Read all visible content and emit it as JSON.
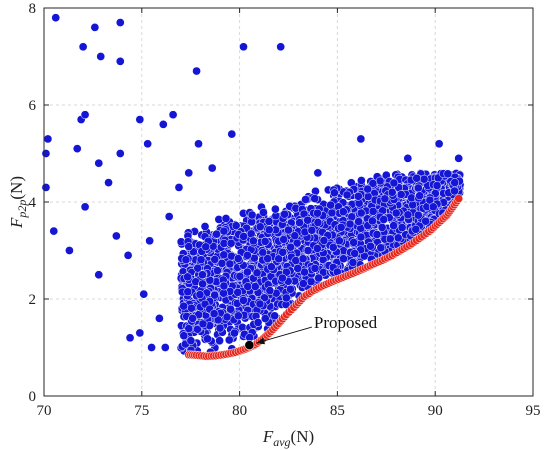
{
  "chart_data": {
    "type": "scatter",
    "xlim": [
      70,
      95
    ],
    "ylim": [
      0,
      8
    ],
    "x_ticks": [
      70,
      75,
      80,
      85,
      90,
      95
    ],
    "y_ticks": [
      0,
      2,
      4,
      6,
      8
    ],
    "x_ticklabels": [
      "70",
      "75",
      "80",
      "85",
      "90",
      "95"
    ],
    "y_ticklabels": [
      "0",
      "2",
      "4",
      "6",
      "8"
    ],
    "xlabel": {
      "main": "F",
      "sub": "avg",
      "unit": "(N)"
    },
    "ylabel": {
      "main": "F",
      "sub": "p2p",
      "unit": "(N)"
    },
    "grid": true,
    "colors": {
      "cloud": "#1515d6",
      "pareto": "#e8261b",
      "proposed": "#000000",
      "grid": "#d9d9d9"
    },
    "series": [
      {
        "marker": "circle",
        "color": "#1515d6",
        "points": [
          [
            70.6,
            7.8
          ],
          [
            72.6,
            7.6
          ],
          [
            73.9,
            7.7
          ],
          [
            72.0,
            7.2
          ],
          [
            72.9,
            7.0
          ],
          [
            73.9,
            6.9
          ],
          [
            80.2,
            7.2
          ],
          [
            82.1,
            7.2
          ],
          [
            77.8,
            6.7
          ],
          [
            70.2,
            5.3
          ],
          [
            71.7,
            5.1
          ],
          [
            71.9,
            5.7
          ],
          [
            72.1,
            5.8
          ],
          [
            70.1,
            5.0
          ],
          [
            73.9,
            5.0
          ],
          [
            72.8,
            4.8
          ],
          [
            73.3,
            4.4
          ],
          [
            74.9,
            5.7
          ],
          [
            75.3,
            5.2
          ],
          [
            76.1,
            5.6
          ],
          [
            76.6,
            5.8
          ],
          [
            77.9,
            5.2
          ],
          [
            79.6,
            5.4
          ],
          [
            78.6,
            4.7
          ],
          [
            77.4,
            4.6
          ],
          [
            70.1,
            4.3
          ],
          [
            70.5,
            3.4
          ],
          [
            71.3,
            3.0
          ],
          [
            72.1,
            3.9
          ],
          [
            72.8,
            2.5
          ],
          [
            74.3,
            2.9
          ],
          [
            73.7,
            3.3
          ],
          [
            75.1,
            2.1
          ],
          [
            74.4,
            1.2
          ],
          [
            75.5,
            1.0
          ],
          [
            74.9,
            1.3
          ],
          [
            76.2,
            1.0
          ],
          [
            75.9,
            1.6
          ],
          [
            75.4,
            3.2
          ],
          [
            76.4,
            3.7
          ],
          [
            76.9,
            4.3
          ],
          [
            81.5,
            3.6
          ],
          [
            83.5,
            3.0
          ],
          [
            85.3,
            3.8
          ],
          [
            87.8,
            4.2
          ],
          [
            89.9,
            3.9
          ],
          [
            91.0,
            4.4
          ],
          [
            86.2,
            5.3
          ],
          [
            88.6,
            4.9
          ],
          [
            90.2,
            5.2
          ],
          [
            91.2,
            4.9
          ],
          [
            84.0,
            4.6
          ],
          [
            85.1,
            3.2
          ],
          [
            82.6,
            2.2
          ],
          [
            80.4,
            2.9
          ],
          [
            79.2,
            3.4
          ],
          [
            78.1,
            2.5
          ],
          [
            77.6,
            1.6
          ],
          [
            79.0,
            1.4
          ]
        ]
      },
      {
        "marker": "circle",
        "color": "#e8261b",
        "points": [
          [
            77.4,
            0.85
          ],
          [
            77.8,
            0.84
          ],
          [
            78.3,
            0.82
          ],
          [
            78.8,
            0.83
          ],
          [
            79.3,
            0.86
          ],
          [
            79.8,
            0.9
          ],
          [
            80.3,
            0.97
          ],
          [
            80.8,
            1.06
          ],
          [
            81.2,
            1.18
          ],
          [
            81.6,
            1.33
          ],
          [
            82.0,
            1.5
          ],
          [
            82.4,
            1.68
          ],
          [
            82.9,
            1.88
          ],
          [
            83.3,
            2.05
          ],
          [
            83.8,
            2.18
          ],
          [
            84.3,
            2.28
          ],
          [
            84.8,
            2.37
          ],
          [
            85.3,
            2.45
          ],
          [
            85.8,
            2.53
          ],
          [
            86.3,
            2.62
          ],
          [
            86.8,
            2.71
          ],
          [
            87.3,
            2.8
          ],
          [
            87.8,
            2.9
          ],
          [
            88.3,
            3.02
          ],
          [
            88.8,
            3.14
          ],
          [
            89.3,
            3.28
          ],
          [
            89.8,
            3.43
          ],
          [
            90.2,
            3.58
          ],
          [
            90.6,
            3.73
          ],
          [
            90.9,
            3.9
          ],
          [
            91.2,
            4.07
          ]
        ]
      },
      {
        "marker": "circle",
        "color": "#000000",
        "points": [
          [
            80.5,
            1.05
          ]
        ]
      }
    ],
    "annotation": {
      "text": "Proposed",
      "x": 80.5,
      "y": 1.05,
      "text_x": 83.9,
      "text_y": 1.38
    }
  }
}
